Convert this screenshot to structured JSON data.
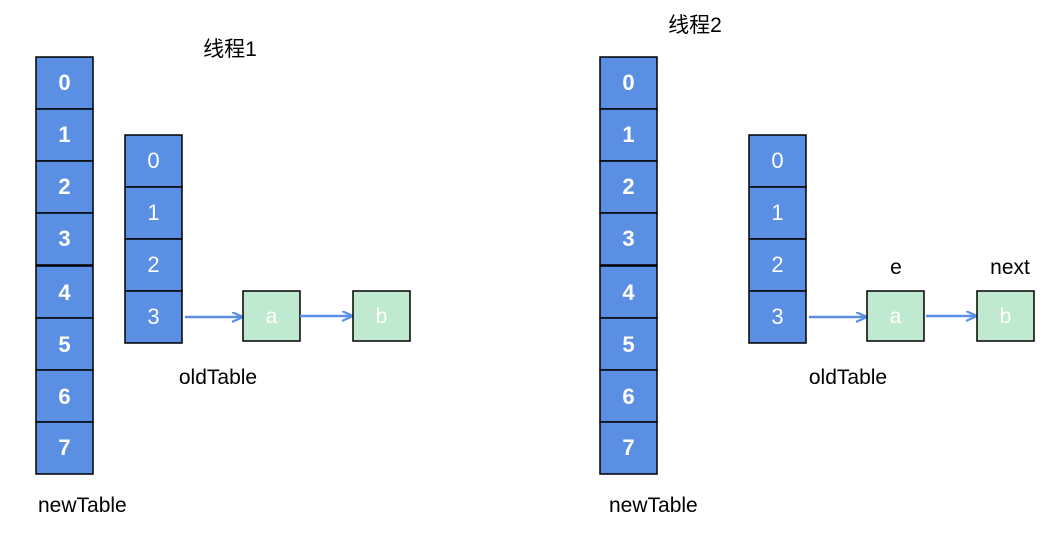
{
  "panels": [
    {
      "title": "线程1",
      "new_table": {
        "label": "newTable",
        "cells": [
          "0",
          "1",
          "2",
          "3",
          "4",
          "5",
          "6",
          "7"
        ]
      },
      "old_table": {
        "label": "oldTable",
        "cells": [
          "0",
          "1",
          "2",
          "3"
        ]
      },
      "nodes": [
        {
          "text": "a",
          "pointer_label": ""
        },
        {
          "text": "b",
          "pointer_label": ""
        }
      ]
    },
    {
      "title": "线程2",
      "new_table": {
        "label": "newTable",
        "cells": [
          "0",
          "1",
          "2",
          "3",
          "4",
          "5",
          "6",
          "7"
        ]
      },
      "old_table": {
        "label": "oldTable",
        "cells": [
          "0",
          "1",
          "2",
          "3"
        ]
      },
      "nodes": [
        {
          "text": "a",
          "pointer_label": "e"
        },
        {
          "text": "b",
          "pointer_label": "next"
        }
      ]
    }
  ],
  "colors": {
    "table_cell": "#5b8fe4",
    "node_fill": "#bfeacf",
    "arrow": "#5b8fe4"
  }
}
